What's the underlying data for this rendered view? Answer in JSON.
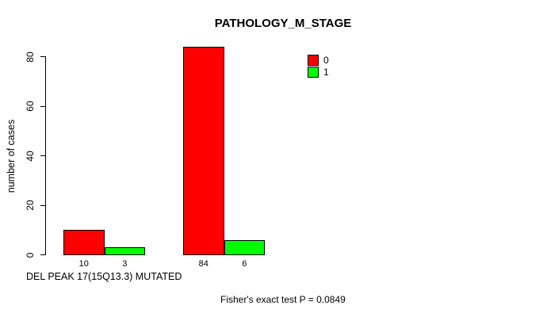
{
  "title": "PATHOLOGY_M_STAGE",
  "y_axis": {
    "label": "number of cases",
    "ticks": [
      0,
      20,
      40,
      60,
      80
    ]
  },
  "x_caption": "DEL PEAK 17(15Q13.3) MUTATED",
  "footnote": "Fisher's exact test P = 0.0849",
  "legend": {
    "items": [
      {
        "label": "0",
        "color": "#FF0000"
      },
      {
        "label": "1",
        "color": "#00FF00"
      }
    ]
  },
  "chart_data": {
    "type": "bar",
    "title": "PATHOLOGY_M_STAGE",
    "xlabel": "DEL PEAK 17(15Q13.3) MUTATED",
    "ylabel": "number of cases",
    "ylim": [
      0,
      84
    ],
    "yticks": [
      0,
      20,
      40,
      60,
      80
    ],
    "grid": false,
    "legend_position": "top-right",
    "series": [
      {
        "name": "0",
        "color": "#FF0000",
        "values": [
          10,
          84
        ]
      },
      {
        "name": "1",
        "color": "#00FF00",
        "values": [
          3,
          6
        ]
      }
    ],
    "bar_value_labels": [
      [
        "10",
        "84"
      ],
      [
        "3",
        "6"
      ]
    ],
    "annotation": "Fisher's exact test P = 0.0849"
  }
}
